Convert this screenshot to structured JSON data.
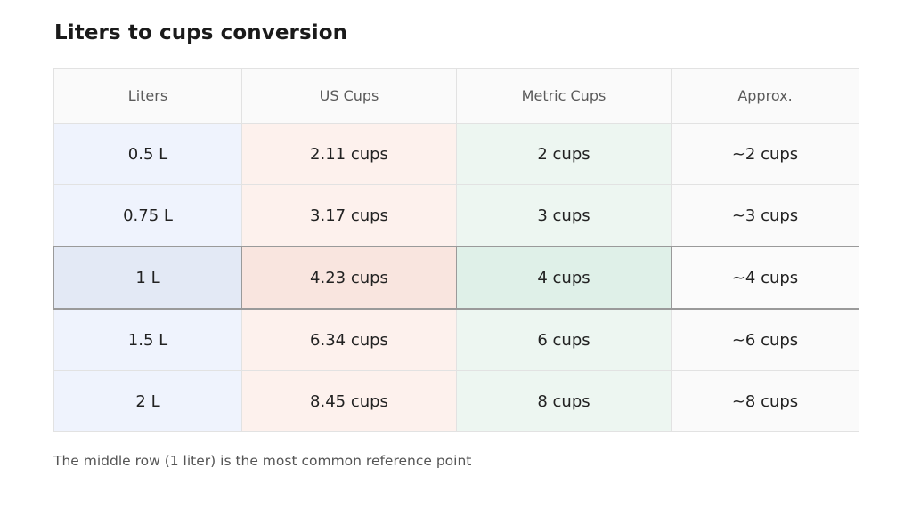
{
  "title": "Liters to cups conversion",
  "columns": [
    "Liters",
    "US Cups",
    "Metric Cups",
    "Approx."
  ],
  "rows": [
    {
      "liters": "0.5 L",
      "us": "2.11 cups",
      "metric": "2 cups",
      "approx": "~2 cups"
    },
    {
      "liters": "0.75 L",
      "us": "3.17 cups",
      "metric": "3 cups",
      "approx": "~3 cups"
    },
    {
      "liters": "1 L",
      "us": "4.23 cups",
      "metric": "4 cups",
      "approx": "~4 cups"
    },
    {
      "liters": "1.5 L",
      "us": "6.34 cups",
      "metric": "6 cups",
      "approx": "~6 cups"
    },
    {
      "liters": "2 L",
      "us": "8.45 cups",
      "metric": "8 cups",
      "approx": "~8 cups"
    }
  ],
  "highlighted_row": 2,
  "note": "The middle row (1 liter) is the most common reference point",
  "colors": {
    "liters_column": "#eff3fd",
    "us_column": "#fdf1ed",
    "metric_column": "#edf6f1",
    "highlight_border": "#9a9a9a"
  }
}
